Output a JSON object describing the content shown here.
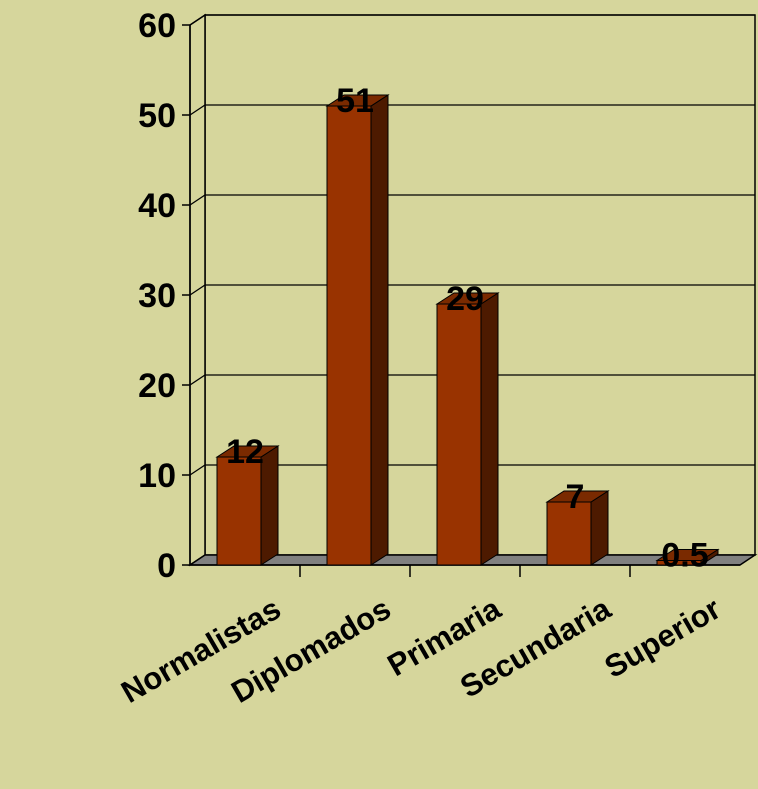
{
  "chart_data": {
    "type": "bar",
    "categories": [
      "Normalistas",
      "Diplomados",
      "Primaria",
      "Secundaria",
      "Superior"
    ],
    "values": [
      12,
      51,
      29,
      7,
      0.5
    ],
    "data_labels": [
      "12",
      "51",
      "29",
      "7",
      "0.5"
    ],
    "y_ticks": [
      "0",
      "10",
      "20",
      "30",
      "40",
      "50",
      "60"
    ],
    "ylim": [
      0,
      60
    ],
    "grid": true,
    "legend": "none",
    "colors": {
      "background": "#D6D69C",
      "bar_front": "#993300",
      "bar_side": "#4D1A00",
      "bar_top": "#7A2A00",
      "floor": "#808080",
      "walls": "#D6D69C",
      "lines": "#000000"
    }
  }
}
